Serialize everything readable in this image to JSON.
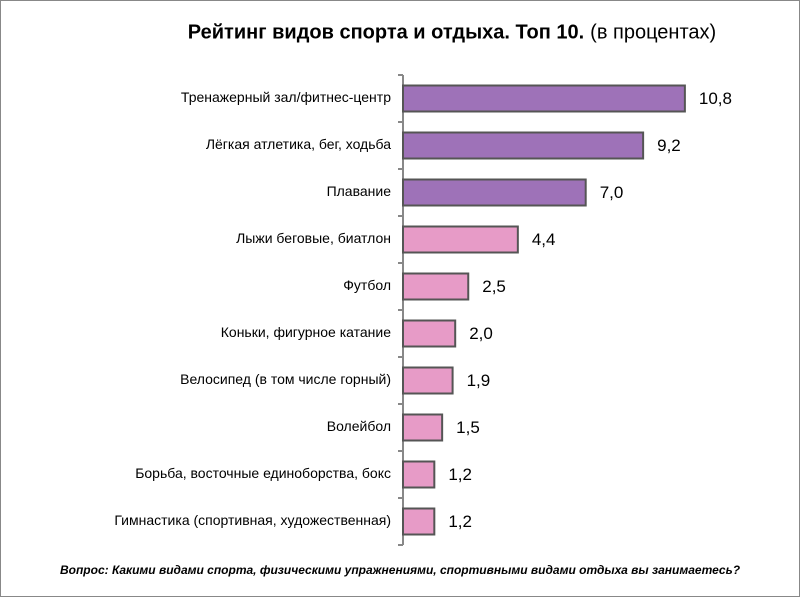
{
  "chart_data": {
    "type": "bar",
    "orientation": "horizontal",
    "title": "Рейтинг видов спорта и отдыха. Топ 10.",
    "subtitle": "(в процентах)",
    "note": "Вопрос: Какими видами спорта, физическими упражнениями, спортивными видами отдыха вы занимаетесь?",
    "categories": [
      "Тренажерный зал/фитнес-центр",
      "Лёгкая атлетика, бег, ходьба",
      "Плавание",
      "Лыжи беговые, биатлон",
      "Футбол",
      "Коньки, фигурное катание",
      "Велосипед (в том числе горный)",
      "Волейбол",
      "Борьба, восточные единоборства, бокс",
      "Гимнастика (спортивная, художественная)"
    ],
    "values": [
      10.8,
      9.2,
      7.0,
      4.4,
      2.5,
      2.0,
      1.9,
      1.5,
      1.2,
      1.2
    ],
    "value_labels": [
      "10,8",
      "9,2",
      "7,0",
      "4,4",
      "2,5",
      "2,0",
      "1,9",
      "1,5",
      "1,2",
      "1,2"
    ],
    "colors": [
      "#9e72b8",
      "#9e72b8",
      "#9e72b8",
      "#e79bc7",
      "#e79bc7",
      "#e79bc7",
      "#e79bc7",
      "#e79bc7",
      "#e79bc7",
      "#e79bc7"
    ]
  }
}
